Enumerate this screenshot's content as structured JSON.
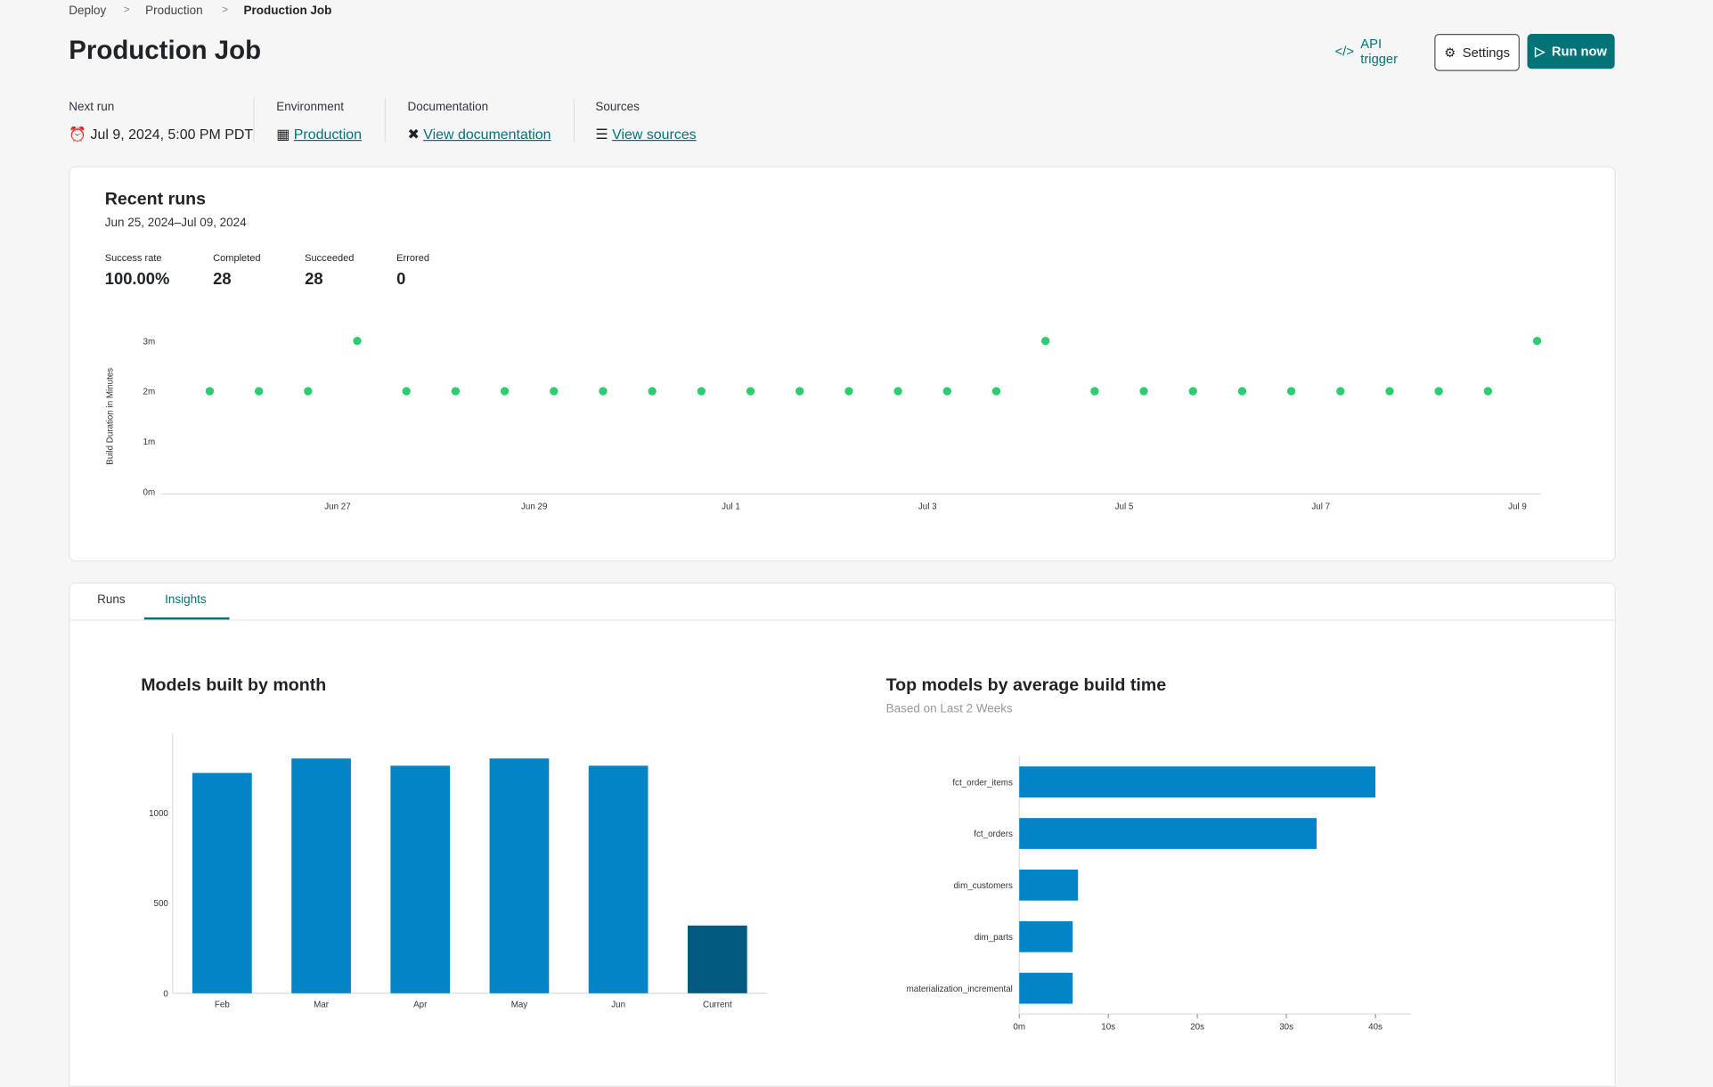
{
  "breadcrumb": [
    "Deploy",
    "Production",
    "Production Job"
  ],
  "header": {
    "title": "Production Job",
    "actions": [
      "API trigger",
      "Settings",
      "Run now"
    ]
  },
  "meta": [
    {
      "label": "Next run",
      "value": "Jul 9, 2024, 5:00 PM PDT"
    },
    {
      "label": "Environment",
      "value": "Production"
    },
    {
      "label": "Documentation",
      "value": "View documentation"
    },
    {
      "label": "Sources",
      "value": "View sources"
    }
  ],
  "stats": [
    {
      "label": "Success rate",
      "value": "100.00%"
    },
    {
      "label": "Completed",
      "value": "28"
    },
    {
      "label": "Succeeded",
      "value": "28"
    },
    {
      "label": "Errored",
      "value": "0"
    }
  ],
  "tabs": [
    "Runs",
    "Insights"
  ],
  "chart_data": [
    {
      "type": "scatter",
      "title": "Recent runs",
      "subtitle": "Jun 25, 2024–Jul 09, 2024",
      "y_label": "Build Duration in Minutes",
      "color": "#2ecc71",
      "x": [
        25.7,
        26.2,
        26.7,
        27.2,
        27.7,
        28.2,
        28.7,
        29.2,
        29.7,
        30.2,
        30.7,
        31.2,
        31.7,
        32.2,
        32.7,
        33.2,
        33.7,
        34.2,
        34.7,
        35.2,
        35.7,
        36.2,
        36.7,
        37.2,
        37.7,
        38.2,
        38.7,
        39.2
      ],
      "values": [
        2,
        2,
        2,
        3,
        2,
        2,
        2,
        2,
        2,
        2,
        2,
        2,
        2,
        2,
        2,
        2,
        2,
        3,
        2,
        2,
        2,
        2,
        2,
        2,
        2,
        2,
        2,
        3
      ],
      "xlim": [
        25.2,
        39.3
      ],
      "xticks": [
        {
          "value": 27,
          "label": "Jun 27"
        },
        {
          "value": 29,
          "label": "Jun 29"
        },
        {
          "value": 31,
          "label": "Jul 1"
        },
        {
          "value": 33,
          "label": "Jul 3"
        },
        {
          "value": 35,
          "label": "Jul 5"
        },
        {
          "value": 37,
          "label": "Jul 7"
        },
        {
          "value": 39,
          "label": "Jul 9"
        }
      ],
      "ylim": [
        0,
        3
      ],
      "yticks": [
        {
          "value": 0,
          "label": "0m"
        },
        {
          "value": 1,
          "label": "1m"
        },
        {
          "value": 2,
          "label": "2m"
        },
        {
          "value": 3,
          "label": "3m"
        }
      ]
    },
    {
      "type": "bar",
      "title": "Models built by month",
      "categories": [
        "Feb",
        "Mar",
        "Apr",
        "May",
        "Jun",
        "Current"
      ],
      "values": [
        1220,
        1300,
        1260,
        1300,
        1260,
        375
      ],
      "colors": [
        "#0284c7",
        "#0284c7",
        "#0284c7",
        "#0284c7",
        "#0284c7",
        "#035a80"
      ],
      "ylim": [
        0,
        1440
      ],
      "yticks": [
        0,
        500,
        1000
      ]
    },
    {
      "type": "bar",
      "orientation": "horizontal",
      "title": "Top models by average build time",
      "subtitle": "Based on Last 2 Weeks",
      "categories": [
        "fct_order_items",
        "fct_orders",
        "dim_customers",
        "dim_parts",
        "materialization_incremental"
      ],
      "values": [
        40,
        33.4,
        6.6,
        6,
        6
      ],
      "color": "#0284c7",
      "xlim": [
        0,
        44
      ],
      "xticks": [
        {
          "value": 0,
          "label": "0m"
        },
        {
          "value": 10,
          "label": "10s"
        },
        {
          "value": 20,
          "label": "20s"
        },
        {
          "value": 30,
          "label": "30s"
        },
        {
          "value": 40,
          "label": "40s"
        }
      ]
    }
  ]
}
